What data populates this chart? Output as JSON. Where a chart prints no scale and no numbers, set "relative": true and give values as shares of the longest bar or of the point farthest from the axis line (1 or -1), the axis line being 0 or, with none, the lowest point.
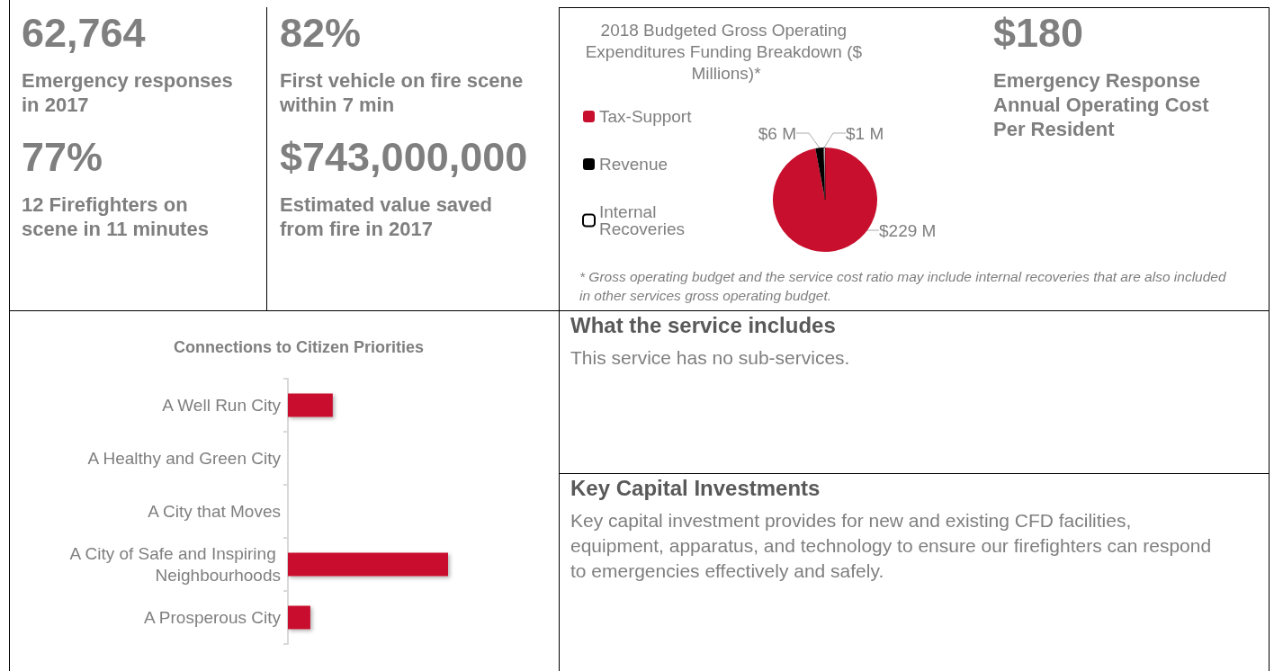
{
  "chart_data": [
    {
      "type": "other",
      "annotations": [
        "62,764",
        "Emergency responses in 2017",
        "77%",
        "12 Firefighters on scene in 11 minutes"
      ]
    },
    {
      "type": "other",
      "annotations": [
        "82%",
        "First vehicle on fire scene within 7 min",
        "$743,000,000",
        "Estimated value saved from fire in 2017"
      ]
    },
    {
      "type": "pie",
      "title": "2018 Budgeted Gross Operating Expenditures Funding Breakdown ($ Millions)*",
      "categories": [
        "Tax-Support",
        "Revenue",
        "Internal Recoveries"
      ],
      "values": [
        229,
        6,
        1
      ],
      "colors": [
        "#c8102e",
        "#000000",
        "#ffffff"
      ],
      "value_labels": [
        "$229 M",
        "$6 M",
        "$1 M"
      ],
      "legend": "left",
      "annotations": [
        "* Gross operating budget and the service cost ratio may include internal recoveries that are also included in other services gross operating budget."
      ]
    },
    {
      "type": "other",
      "annotations": [
        "$180",
        "Emergency Response Annual Operating Cost Per Resident"
      ]
    },
    {
      "type": "bar",
      "orientation": "horizontal",
      "relative": true,
      "title": "Connections to Citizen Priorities",
      "categories": [
        "A Well Run City",
        "A Healthy and Green City",
        "A City that Moves",
        "A City of Safe and Inspiring Neighbourhoods",
        "A Prosperous City"
      ],
      "values": [
        0.28,
        0,
        0,
        1,
        0.14
      ],
      "color": "#c8102e"
    },
    {
      "type": "other",
      "title": "What the service includes",
      "annotations": [
        "This service has no sub-services."
      ]
    },
    {
      "type": "other",
      "title": "Key Capital Investments",
      "annotations": [
        "Key capital investment provides for new and existing CFD facilities, equipment, apparatus, and technology to ensure our firefighters can respond to emergencies effectively and safely."
      ]
    }
  ]
}
